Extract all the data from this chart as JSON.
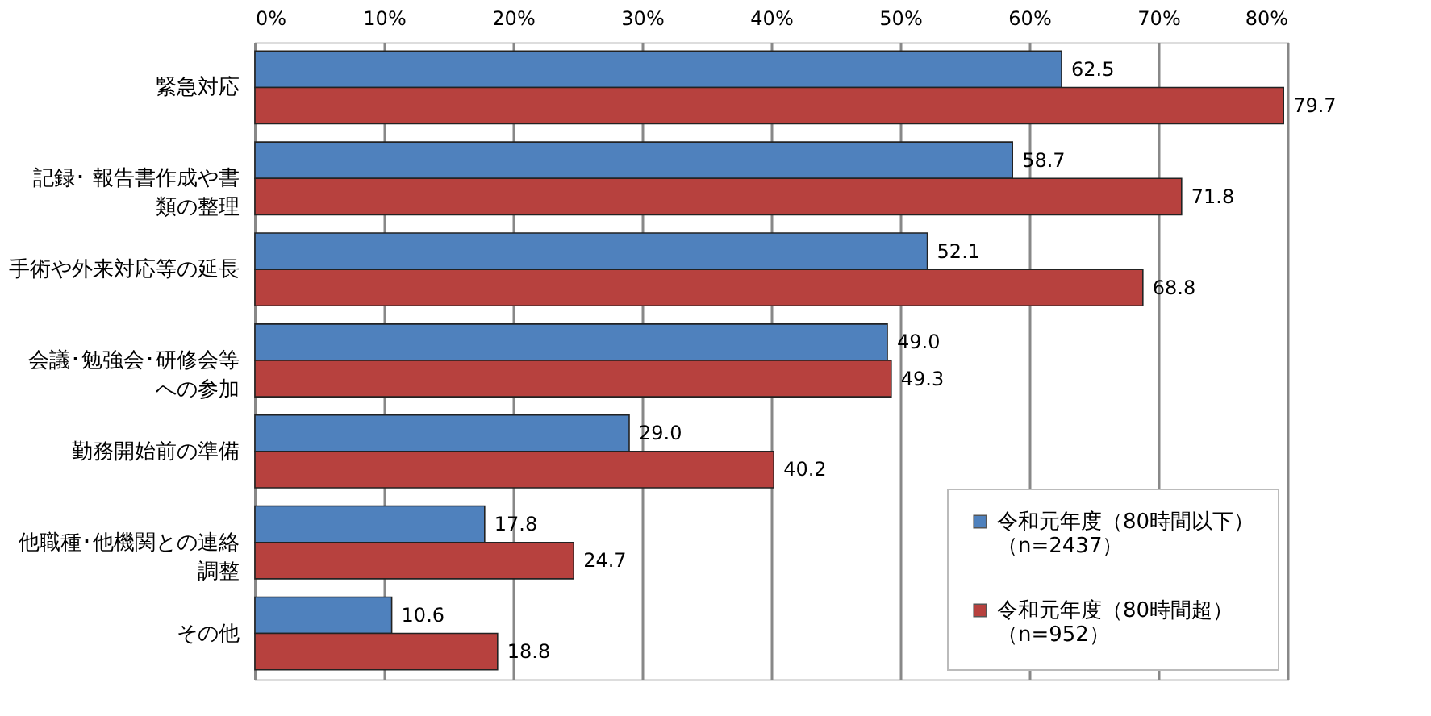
{
  "chart_data": {
    "type": "bar",
    "orientation": "horizontal",
    "categories": [
      "緊急対応",
      "記録･ 報告書作成や書類の整理",
      "手術や外来対応等の延長",
      "会議･勉強会･研修会等への参加",
      "勤務開始前の準備",
      "他職種･他機関との連絡調整",
      "その他"
    ],
    "series": [
      {
        "name": "令和元年度（80時間以下）（n=2437）",
        "color": "#4f81bd",
        "values": [
          62.5,
          58.7,
          52.1,
          49.0,
          29.0,
          17.8,
          10.6
        ],
        "value_labels": [
          "62.5",
          "58.7",
          "52.1",
          "49.0",
          "29.0",
          "17.8",
          "10.6"
        ]
      },
      {
        "name": "令和元年度（80時間超）（n=952）",
        "color": "#b7413e",
        "values": [
          79.7,
          71.8,
          68.8,
          49.3,
          40.2,
          24.7,
          18.8
        ],
        "value_labels": [
          "79.7",
          "71.8",
          "68.8",
          "49.3",
          "40.2",
          "24.7",
          "18.8"
        ]
      }
    ],
    "xlim": [
      0,
      80
    ],
    "xticks": [
      {
        "value": 0,
        "label": "0%"
      },
      {
        "value": 10,
        "label": "10%"
      },
      {
        "value": 20,
        "label": "20%"
      },
      {
        "value": 30,
        "label": "30%"
      },
      {
        "value": 40,
        "label": "40%"
      },
      {
        "value": 50,
        "label": "50%"
      },
      {
        "value": 60,
        "label": "60%"
      },
      {
        "value": 70,
        "label": "70%"
      },
      {
        "value": 80,
        "label": "80%"
      }
    ],
    "grid": "x",
    "legend": "bottom right"
  }
}
